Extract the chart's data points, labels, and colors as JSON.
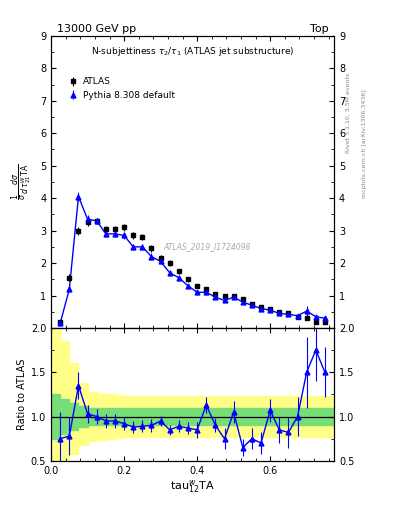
{
  "title_top": "13000 GeV pp",
  "title_right": "Top",
  "plot_title": "N-subjettiness $\\tau_2/\\tau_1$ (ATLAS jet substructure)",
  "xlabel": "tau$_{12}^{w}$TA",
  "ylabel_main": "$\\frac{1}{\\sigma}\\frac{d\\sigma}{d\\,\\tau_{21}^{W}\\mathrm{TA}}$",
  "ylabel_ratio": "Ratio to ATLAS",
  "watermark": "ATLAS_2019_I1724098",
  "right_label_top": "Rivet 3.1.10, 3.5M events",
  "right_label_bot": "mcplots.cern.ch [arXiv:1306.3436]",
  "atlas_x": [
    0.025,
    0.05,
    0.075,
    0.1,
    0.125,
    0.15,
    0.175,
    0.2,
    0.225,
    0.25,
    0.275,
    0.3,
    0.325,
    0.35,
    0.375,
    0.4,
    0.425,
    0.45,
    0.475,
    0.5,
    0.525,
    0.55,
    0.575,
    0.6,
    0.625,
    0.65,
    0.675,
    0.7,
    0.725,
    0.75
  ],
  "atlas_y": [
    0.2,
    1.55,
    3.0,
    3.25,
    3.3,
    3.05,
    3.05,
    3.1,
    2.85,
    2.8,
    2.45,
    2.15,
    2.0,
    1.75,
    1.5,
    1.3,
    1.2,
    1.05,
    1.0,
    1.0,
    0.9,
    0.75,
    0.65,
    0.6,
    0.5,
    0.45,
    0.35,
    0.3,
    0.2,
    0.2
  ],
  "atlas_yerr": [
    0.05,
    0.1,
    0.12,
    0.1,
    0.1,
    0.1,
    0.1,
    0.1,
    0.1,
    0.1,
    0.1,
    0.1,
    0.08,
    0.08,
    0.08,
    0.07,
    0.07,
    0.07,
    0.06,
    0.06,
    0.06,
    0.05,
    0.05,
    0.05,
    0.04,
    0.04,
    0.04,
    0.03,
    0.03,
    0.03
  ],
  "pythia_x": [
    0.025,
    0.05,
    0.075,
    0.1,
    0.125,
    0.15,
    0.175,
    0.2,
    0.225,
    0.25,
    0.275,
    0.3,
    0.325,
    0.35,
    0.375,
    0.4,
    0.425,
    0.45,
    0.475,
    0.5,
    0.525,
    0.55,
    0.575,
    0.6,
    0.625,
    0.65,
    0.675,
    0.7,
    0.725,
    0.75
  ],
  "pythia_y": [
    0.15,
    1.2,
    4.05,
    3.35,
    3.3,
    2.9,
    2.9,
    2.85,
    2.5,
    2.5,
    2.2,
    2.05,
    1.7,
    1.55,
    1.3,
    1.1,
    1.1,
    0.95,
    0.85,
    0.95,
    0.8,
    0.7,
    0.6,
    0.55,
    0.45,
    0.42,
    0.38,
    0.52,
    0.35,
    0.3
  ],
  "pythia_yerr": [
    0.05,
    0.1,
    0.15,
    0.12,
    0.1,
    0.1,
    0.1,
    0.1,
    0.1,
    0.1,
    0.1,
    0.08,
    0.08,
    0.08,
    0.07,
    0.07,
    0.07,
    0.06,
    0.06,
    0.06,
    0.06,
    0.05,
    0.05,
    0.05,
    0.04,
    0.04,
    0.04,
    0.15,
    0.05,
    0.04
  ],
  "ratio_x": [
    0.025,
    0.05,
    0.075,
    0.1,
    0.125,
    0.15,
    0.175,
    0.2,
    0.225,
    0.25,
    0.275,
    0.3,
    0.325,
    0.35,
    0.375,
    0.4,
    0.425,
    0.45,
    0.475,
    0.5,
    0.525,
    0.55,
    0.575,
    0.6,
    0.625,
    0.65,
    0.675,
    0.7,
    0.725,
    0.75
  ],
  "ratio_y": [
    0.75,
    0.78,
    1.35,
    1.03,
    1.0,
    0.95,
    0.95,
    0.92,
    0.88,
    0.89,
    0.9,
    0.95,
    0.85,
    0.89,
    0.87,
    0.85,
    1.13,
    0.9,
    0.75,
    1.05,
    0.65,
    0.75,
    0.7,
    1.07,
    0.85,
    0.82,
    1.0,
    1.5,
    1.75,
    1.5
  ],
  "ratio_yerr": [
    0.3,
    0.22,
    0.15,
    0.1,
    0.08,
    0.08,
    0.08,
    0.07,
    0.07,
    0.07,
    0.07,
    0.06,
    0.06,
    0.07,
    0.07,
    0.09,
    0.09,
    0.08,
    0.12,
    0.12,
    0.1,
    0.12,
    0.12,
    0.13,
    0.15,
    0.18,
    0.22,
    0.4,
    0.35,
    0.28
  ],
  "green_band_x": [
    0.0,
    0.025,
    0.05,
    0.075,
    0.1,
    0.125,
    0.15,
    0.175,
    0.2,
    0.225,
    0.25,
    0.275,
    0.3,
    0.325,
    0.35,
    0.375,
    0.4,
    0.425,
    0.45,
    0.475,
    0.5,
    0.525,
    0.55,
    0.575,
    0.6,
    0.625,
    0.65,
    0.675,
    0.7,
    0.725,
    0.75,
    0.775
  ],
  "green_band_lo": [
    0.75,
    0.8,
    0.85,
    0.88,
    0.9,
    0.9,
    0.9,
    0.9,
    0.9,
    0.9,
    0.9,
    0.9,
    0.9,
    0.9,
    0.9,
    0.9,
    0.9,
    0.9,
    0.9,
    0.9,
    0.9,
    0.9,
    0.9,
    0.9,
    0.9,
    0.9,
    0.9,
    0.9,
    0.9,
    0.9,
    0.9,
    0.9
  ],
  "green_band_hi": [
    1.25,
    1.2,
    1.15,
    1.12,
    1.1,
    1.1,
    1.1,
    1.1,
    1.1,
    1.1,
    1.1,
    1.1,
    1.1,
    1.1,
    1.1,
    1.1,
    1.1,
    1.1,
    1.1,
    1.1,
    1.1,
    1.1,
    1.1,
    1.1,
    1.1,
    1.1,
    1.1,
    1.1,
    1.1,
    1.1,
    1.1,
    1.1
  ],
  "yellow_band_x": [
    0.0,
    0.025,
    0.05,
    0.075,
    0.1,
    0.125,
    0.15,
    0.175,
    0.2,
    0.225,
    0.25,
    0.275,
    0.3,
    0.325,
    0.35,
    0.375,
    0.4,
    0.425,
    0.45,
    0.475,
    0.5,
    0.525,
    0.55,
    0.575,
    0.6,
    0.625,
    0.65,
    0.675,
    0.7,
    0.725,
    0.75,
    0.775
  ],
  "yellow_band_lo": [
    0.35,
    0.45,
    0.58,
    0.68,
    0.72,
    0.74,
    0.75,
    0.76,
    0.77,
    0.77,
    0.77,
    0.77,
    0.77,
    0.77,
    0.77,
    0.77,
    0.77,
    0.77,
    0.77,
    0.77,
    0.77,
    0.77,
    0.77,
    0.77,
    0.77,
    0.77,
    0.77,
    0.77,
    0.77,
    0.77,
    0.77,
    0.77
  ],
  "yellow_band_hi": [
    2.0,
    1.85,
    1.6,
    1.38,
    1.28,
    1.26,
    1.25,
    1.24,
    1.23,
    1.23,
    1.23,
    1.23,
    1.23,
    1.23,
    1.23,
    1.23,
    1.23,
    1.23,
    1.23,
    1.23,
    1.23,
    1.23,
    1.23,
    1.23,
    1.23,
    1.23,
    1.23,
    1.23,
    1.23,
    1.23,
    1.23,
    1.23
  ],
  "xlim": [
    0.0,
    0.775
  ],
  "ylim_main": [
    0.0,
    9.0
  ],
  "ylim_ratio": [
    0.5,
    2.0
  ],
  "yticks_main": [
    1,
    2,
    3,
    4,
    5,
    6,
    7,
    8,
    9
  ],
  "yticks_ratio": [
    0.5,
    1.0,
    1.5,
    2.0
  ],
  "xticks": [
    0.0,
    0.2,
    0.4,
    0.6
  ],
  "atlas_color": "black",
  "pythia_color": "blue",
  "green_color": "#77dd77",
  "yellow_color": "#ffff88",
  "line_color": "black",
  "fig_width": 3.93,
  "fig_height": 5.12,
  "dpi": 100
}
